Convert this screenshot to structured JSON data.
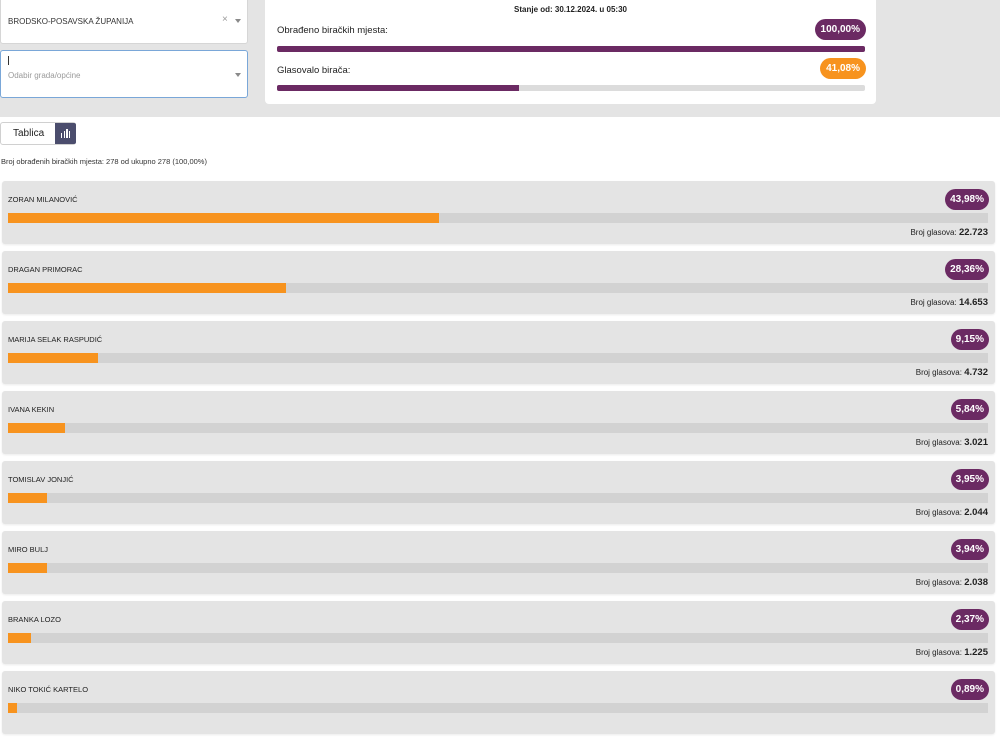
{
  "filters": {
    "county_value": "BRODSKO-POSAVSKA ŽUPANIJA",
    "city_placeholder": "Odabir grada/općine",
    "clear_symbol": "×"
  },
  "status": {
    "date_label": "Stanje od: 30.12.2024. u 05:30",
    "processed": {
      "label": "Obrađeno biračkih mjesta:",
      "percent_text": "100,00%",
      "percent": 100.0,
      "color": "#6b2a63"
    },
    "turnout": {
      "label": "Glasovalo birača:",
      "percent_text": "41,08%",
      "percent": 41.08,
      "color": "#f7931e"
    }
  },
  "view_toggle": {
    "table_label": "Tablica",
    "chart_icon": "bar-chart-icon"
  },
  "summary_text": "Broj obrađenih biračkih mjesta: 278 od ukupno 278 (100,00%)",
  "votes_label": "Broj glasova:",
  "candidates": [
    {
      "name": "ZORAN MILANOVIĆ",
      "percent_text": "43,98%",
      "percent": 43.98,
      "votes": "22.723"
    },
    {
      "name": "DRAGAN PRIMORAC",
      "percent_text": "28,36%",
      "percent": 28.36,
      "votes": "14.653"
    },
    {
      "name": "MARIJA SELAK RASPUDIĆ",
      "percent_text": "9,15%",
      "percent": 9.15,
      "votes": "4.732"
    },
    {
      "name": "IVANA KEKIN",
      "percent_text": "5,84%",
      "percent": 5.84,
      "votes": "3.021"
    },
    {
      "name": "TOMISLAV JONJIĆ",
      "percent_text": "3,95%",
      "percent": 3.95,
      "votes": "2.044"
    },
    {
      "name": "MIRO BULJ",
      "percent_text": "3,94%",
      "percent": 3.94,
      "votes": "2.038"
    },
    {
      "name": "BRANKA LOZO",
      "percent_text": "2,37%",
      "percent": 2.37,
      "votes": "1.225"
    },
    {
      "name": "NIKO TOKIĆ KARTELO",
      "percent_text": "0,89%",
      "percent": 0.89,
      "votes": ""
    }
  ],
  "colors": {
    "badge": "#6b2a63",
    "bar": "#f7931e"
  }
}
